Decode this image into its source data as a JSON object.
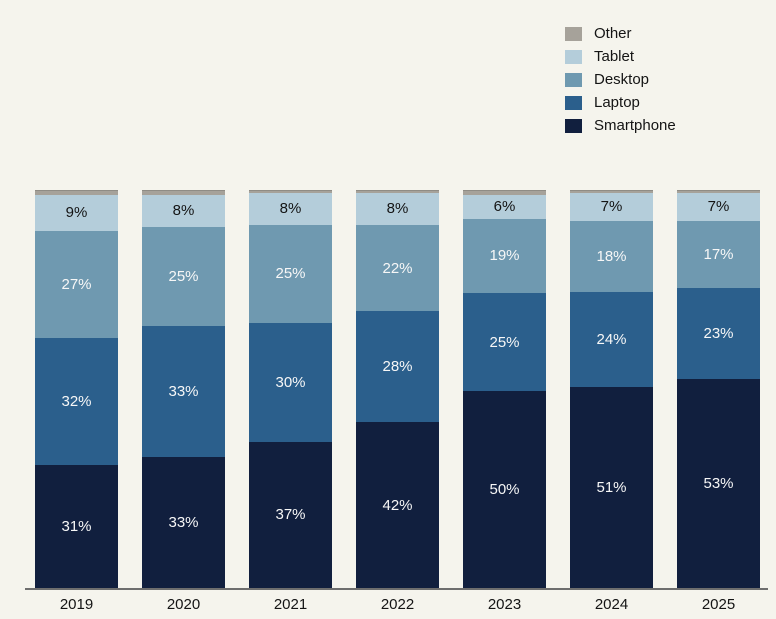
{
  "chart_data": {
    "type": "bar",
    "variant": "stacked-100-percent",
    "title": "",
    "xlabel": "",
    "ylabel": "",
    "grid": false,
    "background_color": "#f5f4ed",
    "axis_line_color": "#6e6e6e",
    "categories": [
      "2019",
      "2020",
      "2021",
      "2022",
      "2023",
      "2024",
      "2025"
    ],
    "series": [
      {
        "name": "Smartphone",
        "color": "#111f3e",
        "label_color": "#f7f7f7",
        "show_labels": true,
        "texture": "none",
        "values": [
          31,
          33,
          37,
          42,
          50,
          51,
          53
        ],
        "labels": [
          "31%",
          "33%",
          "37%",
          "42%",
          "50%",
          "51%",
          "53%"
        ]
      },
      {
        "name": "Laptop",
        "color": "#2b5f8c",
        "label_color": "#f7f7f7",
        "show_labels": true,
        "texture": "none",
        "values": [
          32,
          33,
          30,
          28,
          25,
          24,
          23
        ],
        "labels": [
          "32%",
          "33%",
          "30%",
          "28%",
          "25%",
          "24%",
          "23%"
        ]
      },
      {
        "name": "Desktop",
        "color": "#6f99b0",
        "label_color": "#f7f7f7",
        "show_labels": true,
        "texture": "dots",
        "values": [
          27,
          25,
          25,
          22,
          19,
          18,
          17
        ],
        "labels": [
          "27%",
          "25%",
          "25%",
          "22%",
          "19%",
          "18%",
          "17%"
        ]
      },
      {
        "name": "Tablet",
        "color": "#b4cdda",
        "label_color": "#141414",
        "show_labels": true,
        "texture": "dots",
        "values": [
          9,
          8,
          8,
          8,
          6,
          7,
          7
        ],
        "labels": [
          "9%",
          "8%",
          "8%",
          "8%",
          "6%",
          "7%",
          "7%"
        ]
      },
      {
        "name": "Other",
        "color": "#a6a29a",
        "label_color": "#141414",
        "show_labels": false,
        "texture": "none",
        "values": [
          1,
          1,
          0.5,
          0.5,
          1,
          0.5,
          0.5
        ],
        "labels": [
          "",
          "",
          "",
          "",
          "",
          "",
          ""
        ]
      }
    ],
    "legend": {
      "position": "top-right",
      "entries": [
        "Other",
        "Tablet",
        "Desktop",
        "Laptop",
        "Smartphone"
      ]
    }
  }
}
